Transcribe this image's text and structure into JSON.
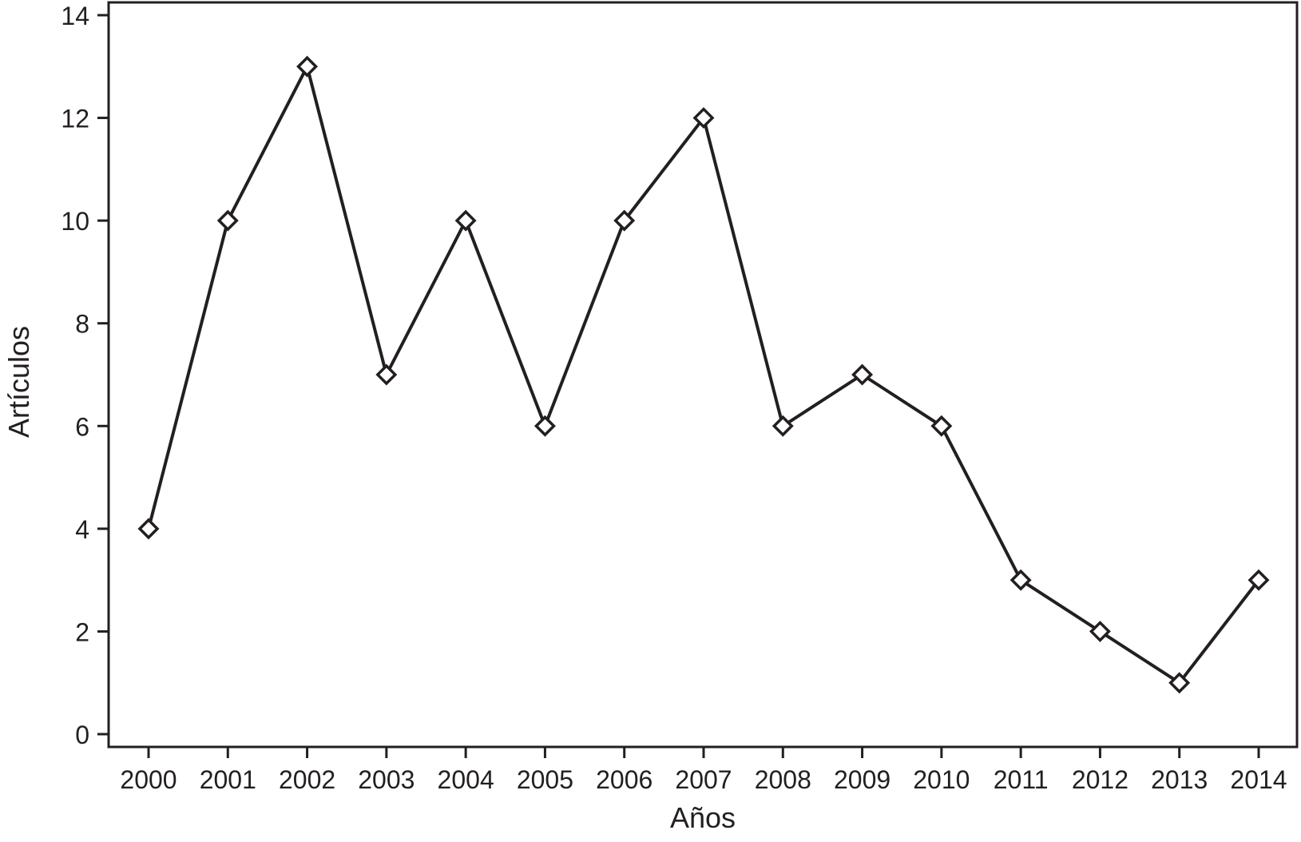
{
  "chart_data": {
    "type": "line",
    "title": "",
    "xlabel": "Años",
    "ylabel": "Artículos",
    "categories": [
      "2000",
      "2001",
      "2002",
      "2003",
      "2004",
      "2005",
      "2006",
      "2007",
      "2008",
      "2009",
      "2010",
      "2011",
      "2012",
      "2013",
      "2014"
    ],
    "series": [
      {
        "values": [
          4,
          10,
          13,
          7,
          10,
          6,
          10,
          12,
          6,
          7,
          6,
          3,
          2,
          1,
          3
        ],
        "marker": "diamond-open",
        "color": "#231f20"
      }
    ],
    "ylim": [
      0,
      14
    ],
    "yticks": [
      "0",
      "2",
      "4",
      "6",
      "8",
      "10",
      "12",
      "14"
    ],
    "grid": false,
    "legend": "none"
  }
}
